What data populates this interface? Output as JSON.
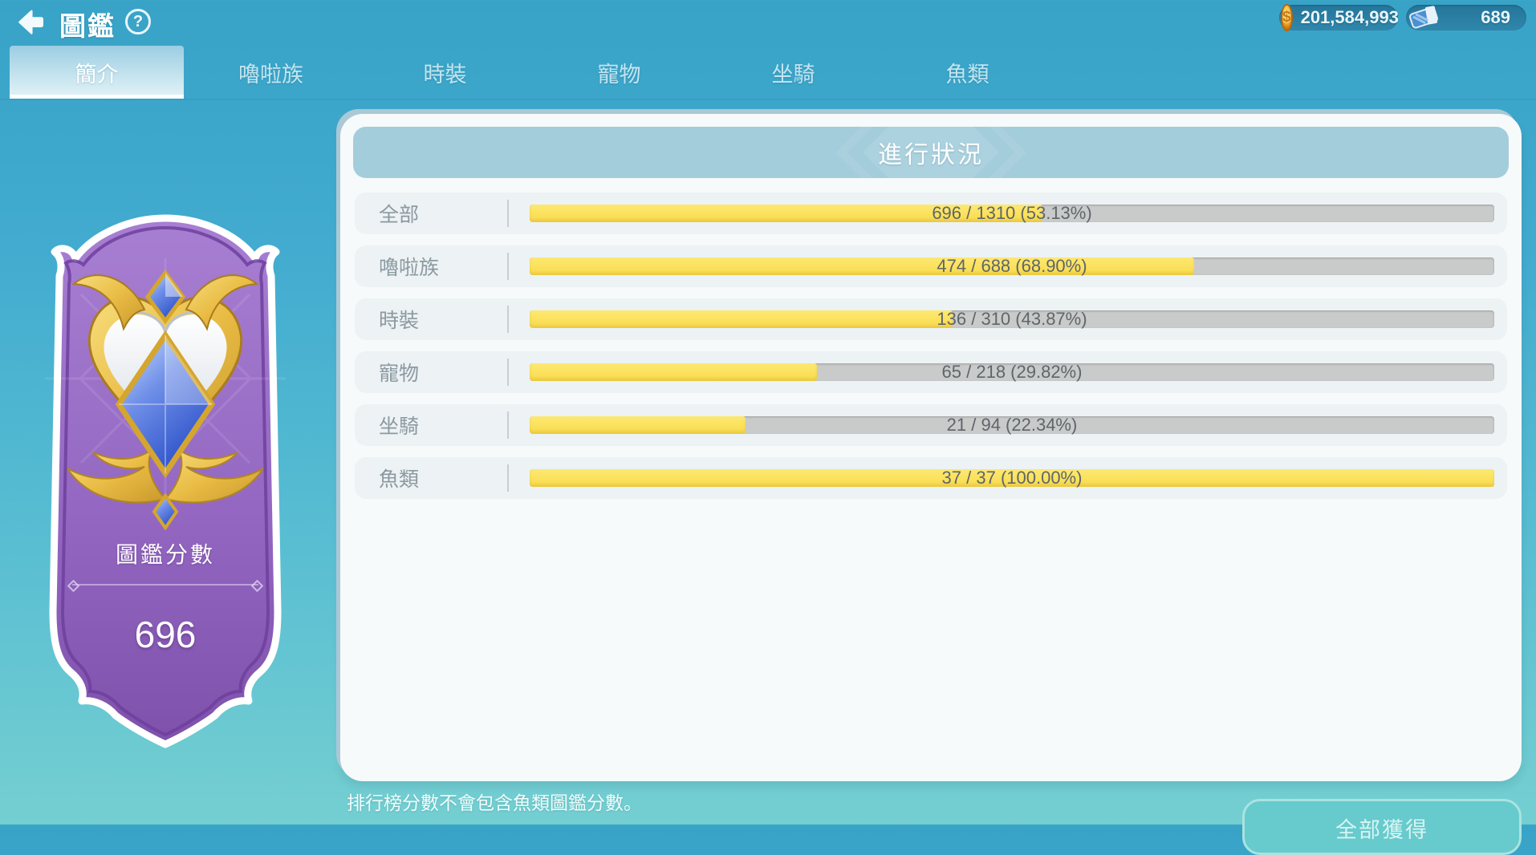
{
  "header": {
    "title": "圖鑑",
    "help_icon": "?",
    "coin_symbol": "$",
    "coins": "201,584,993",
    "tickets": "689"
  },
  "tabs": [
    {
      "label": "簡介",
      "active": true
    },
    {
      "label": "嚕啦族",
      "active": false
    },
    {
      "label": "時裝",
      "active": false
    },
    {
      "label": "寵物",
      "active": false
    },
    {
      "label": "坐騎",
      "active": false
    },
    {
      "label": "魚類",
      "active": false
    }
  ],
  "badge": {
    "label": "圖鑑分數",
    "score": "696"
  },
  "panel": {
    "title": "進行狀況",
    "rows": [
      {
        "label": "全部",
        "current": 696,
        "total": 1310,
        "percent": 53.13,
        "text": "696 / 1310 (53.13%)"
      },
      {
        "label": "嚕啦族",
        "current": 474,
        "total": 688,
        "percent": 68.9,
        "text": "474 / 688 (68.90%)"
      },
      {
        "label": "時裝",
        "current": 136,
        "total": 310,
        "percent": 43.87,
        "text": "136 / 310 (43.87%)"
      },
      {
        "label": "寵物",
        "current": 65,
        "total": 218,
        "percent": 29.82,
        "text": "65 / 218 (29.82%)"
      },
      {
        "label": "坐騎",
        "current": 21,
        "total": 94,
        "percent": 22.34,
        "text": "21 / 94 (22.34%)"
      },
      {
        "label": "魚類",
        "current": 37,
        "total": 37,
        "percent": 100.0,
        "text": "37 / 37 (100.00%)"
      }
    ]
  },
  "footer": {
    "note": "排行榜分數不會包含魚類圖鑑分數。",
    "claim_button": "全部獲得"
  },
  "colors": {
    "bg_top": "#38a3c7",
    "bg_bottom": "#74cfd1",
    "bar_fill": "#fbe15c",
    "bar_track": "#c9caca",
    "badge_purple": "#9b6fc8",
    "panel_header": "#a4cddc"
  }
}
